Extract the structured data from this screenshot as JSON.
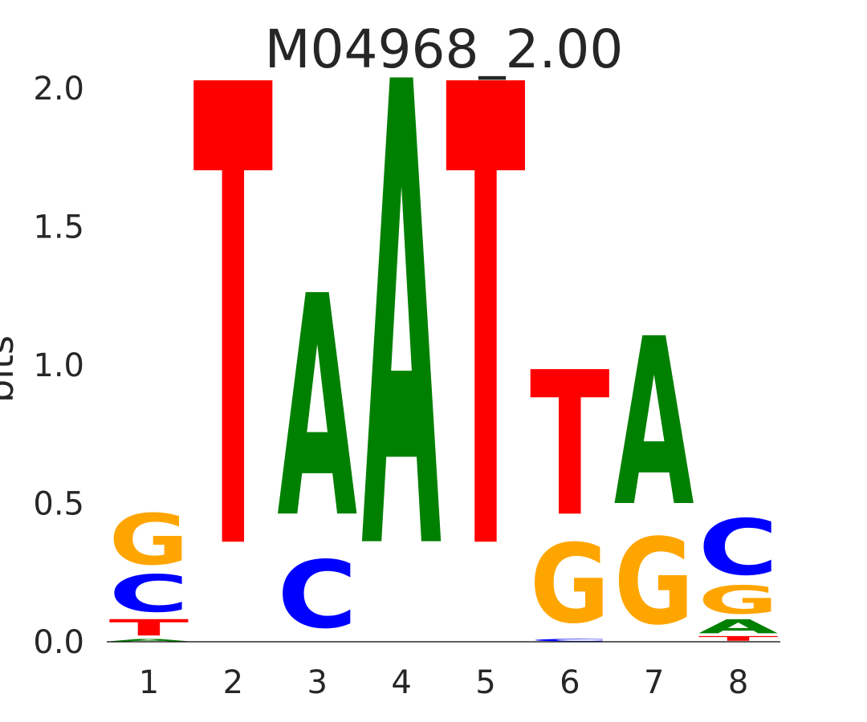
{
  "chart_data": {
    "type": "sequence-logo",
    "title": "M04968_2.00",
    "ylabel": "bits",
    "ylim": [
      0,
      2.0
    ],
    "y_ticks": [
      "0.0",
      "0.5",
      "1.0",
      "1.5",
      "2.0"
    ],
    "positions": [
      "1",
      "2",
      "3",
      "4",
      "5",
      "6",
      "7",
      "8"
    ],
    "letter_colors": {
      "A": "#008000",
      "C": "#0000ff",
      "G": "#ffa500",
      "T": "#ff0000"
    },
    "stacks": [
      [
        {
          "letter": "A",
          "bits": 0.01
        },
        {
          "letter": "T",
          "bits": 0.07
        },
        {
          "letter": "C",
          "bits": 0.16
        },
        {
          "letter": "G",
          "bits": 0.22
        }
      ],
      [
        {
          "letter": "T",
          "bits": 1.98
        }
      ],
      [
        {
          "letter": "C",
          "bits": 0.29
        },
        {
          "letter": "A",
          "bits": 0.95
        }
      ],
      [
        {
          "letter": "A",
          "bits": 1.99
        }
      ],
      [
        {
          "letter": "T",
          "bits": 1.98
        }
      ],
      [
        {
          "letter": "C",
          "bits": 0.01
        },
        {
          "letter": "G",
          "bits": 0.34
        },
        {
          "letter": "T",
          "bits": 0.62
        }
      ],
      [
        {
          "letter": "G",
          "bits": 0.37
        },
        {
          "letter": "A",
          "bits": 0.72
        }
      ],
      [
        {
          "letter": "T",
          "bits": 0.02
        },
        {
          "letter": "A",
          "bits": 0.06
        },
        {
          "letter": "G",
          "bits": 0.12
        },
        {
          "letter": "C",
          "bits": 0.24
        }
      ]
    ]
  }
}
